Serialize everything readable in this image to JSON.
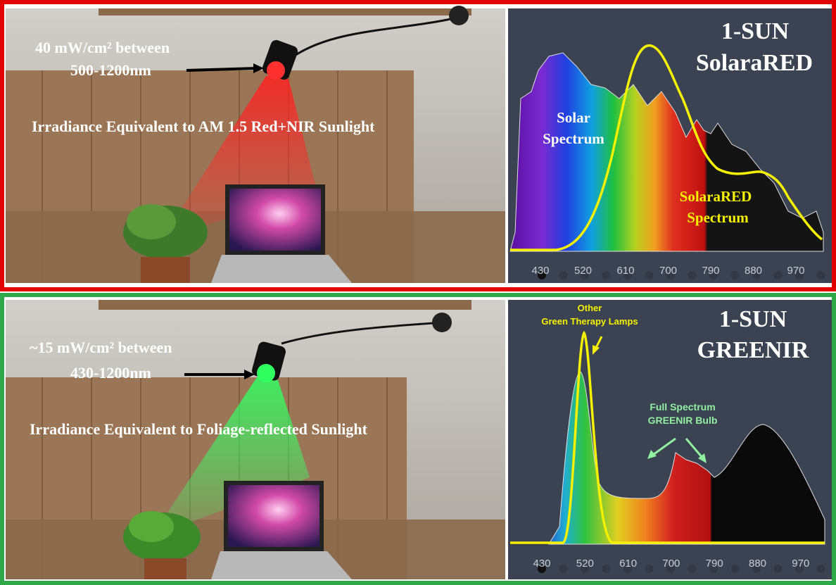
{
  "panels": [
    {
      "photo": {
        "power": "40 mW/cm² between",
        "range": "500-1200nm",
        "caption": "Irradiance Equivalent to AM 1.5 Red+NIR Sunlight"
      },
      "chart": {
        "title_line1": "1-SUN",
        "title_line2": "SolaraRED",
        "label_a_line1": "Solar",
        "label_a_line2": "Spectrum",
        "label_b_line1": "SolaraRED",
        "label_b_line2": "Spectrum",
        "x_ticks": [
          "430",
          "520",
          "610",
          "700",
          "790",
          "880",
          "970"
        ]
      }
    },
    {
      "photo": {
        "power": "~15 mW/cm² between",
        "range": "430-1200nm",
        "caption": "Irradiance Equivalent to Foliage-reflected Sunlight"
      },
      "chart": {
        "title_line1": "1-SUN",
        "title_line2": "GREENIR",
        "label_a_line1": "Other",
        "label_a_line2": "Green Therapy Lamps",
        "label_b_line1": "Full Spectrum",
        "label_b_line2": "GREENIR Bulb",
        "x_ticks": [
          "430",
          "520",
          "610",
          "700",
          "790",
          "880",
          "970"
        ]
      }
    }
  ]
}
